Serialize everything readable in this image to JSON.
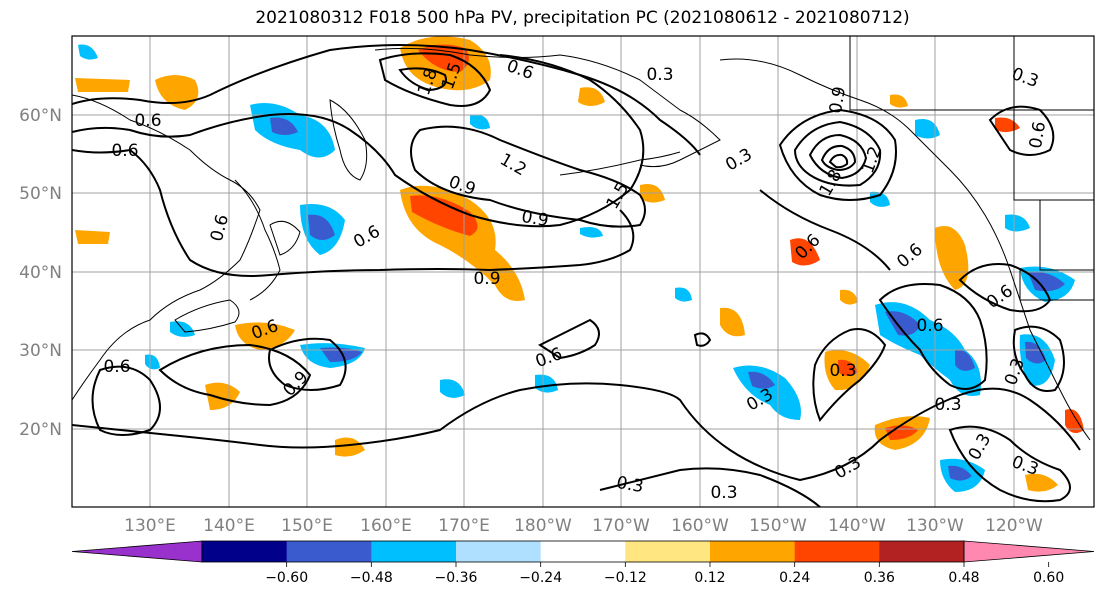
{
  "title": "2021080312 F018 500 hPa PV, precipitation PC (2021080612 - 2021080712)",
  "map": {
    "lat_labels": [
      "60°N",
      "50°N",
      "40°N",
      "30°N",
      "20°N"
    ],
    "lon_labels": [
      "130°E",
      "140°E",
      "150°E",
      "160°E",
      "170°E",
      "180°W",
      "170°W",
      "160°W",
      "150°W",
      "140°W",
      "130°W",
      "120°W"
    ],
    "contour_labels": [
      "0.6",
      "0.6",
      "1.8",
      "1.5",
      "0.6",
      "0.9",
      "1.2",
      "1.5",
      "0.9",
      "0.3",
      "0.9",
      "1.8",
      "1.2",
      "0.3",
      "0.6",
      "0.6",
      "0.6",
      "0.9",
      "0.6",
      "0.6",
      "0.6",
      "0.9",
      "0.6",
      "0.6",
      "0.3",
      "0.3",
      "0.3",
      "0.3",
      "0.3",
      "0.6",
      "0.3",
      "0.3",
      "0.3",
      "0.3",
      "0.3",
      "0.6"
    ]
  },
  "colorbar": {
    "ticks": [
      "−0.60",
      "−0.48",
      "−0.36",
      "−0.24",
      "−0.12",
      "0.12",
      "0.24",
      "0.36",
      "0.48",
      "0.60"
    ],
    "colors": [
      "#9932cc",
      "#00008b",
      "#3a5bcd",
      "#00bfff",
      "#b0e0ff",
      "#ffffff",
      "#ffe680",
      "#ffa500",
      "#ff4500",
      "#b22222",
      "#ff88b0"
    ]
  }
}
